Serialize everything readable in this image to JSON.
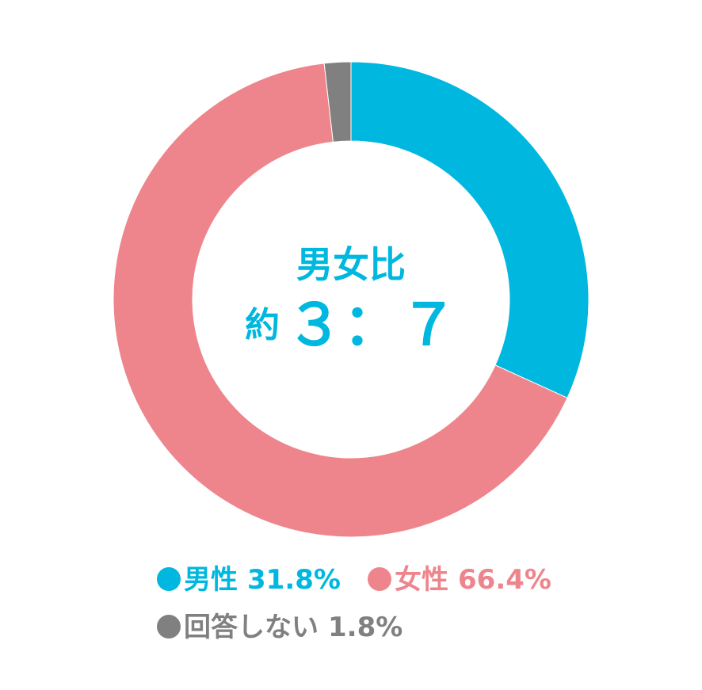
{
  "chart_data": {
    "type": "pie",
    "variant": "donut",
    "center_text": {
      "title": "男女比",
      "prefix": "約",
      "ratio": "３：７"
    },
    "slices": [
      {
        "label": "男性",
        "value": 31.8,
        "display": "31.8%",
        "color": "#00B8DF"
      },
      {
        "label": "女性",
        "value": 66.4,
        "display": "66.4%",
        "color": "#EE858C"
      },
      {
        "label": "回答しない",
        "value": 1.8,
        "display": "1.8%",
        "color": "#808080"
      }
    ],
    "start_angle": "12 o'clock",
    "direction": "clockwise",
    "legend_position": "bottom"
  }
}
